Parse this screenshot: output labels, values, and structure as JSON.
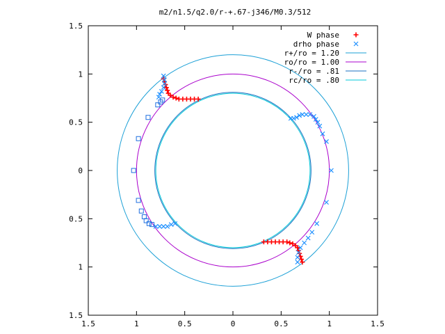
{
  "chart_data": {
    "type": "scatter",
    "title": "m2/n1.5/q2.0/r-+.67-j346/M0.3/512",
    "xlabel": "",
    "ylabel": "",
    "xlim": [
      -1.5,
      1.5
    ],
    "ylim": [
      -1.5,
      1.5
    ],
    "xticks": [
      -1.5,
      -1,
      -0.5,
      0,
      0.5,
      1,
      1.5
    ],
    "yticks": [
      -1.5,
      -1,
      -0.5,
      0,
      0.5,
      1,
      1.5
    ],
    "xtick_labels": [
      "1.5",
      "1",
      "0.5",
      "0",
      "0.5",
      "1",
      "1.5"
    ],
    "ytick_labels": [
      "1.5",
      "1",
      "0.5",
      "0",
      "0.5",
      "1",
      "1.5"
    ],
    "grid": false,
    "legend_position": "top-right",
    "colors": {
      "w_phase": "#ff0000",
      "drho_phase": "#1e90ff",
      "r_plus": "#1a9fd6",
      "ro": "#aa00cc",
      "r_minus": "#1a6fc0",
      "rc": "#00c8d8",
      "open_squares": "#1e6fe0"
    },
    "series": [
      {
        "name": "W phase",
        "marker": "plus",
        "color": "#ff0000",
        "points": [
          [
            -0.72,
            0.95
          ],
          [
            -0.71,
            0.92
          ],
          [
            -0.7,
            0.89
          ],
          [
            -0.69,
            0.86
          ],
          [
            -0.68,
            0.83
          ],
          [
            -0.67,
            0.8
          ],
          [
            -0.65,
            0.78
          ],
          [
            -0.62,
            0.76
          ],
          [
            -0.59,
            0.75
          ],
          [
            -0.56,
            0.74
          ],
          [
            -0.52,
            0.74
          ],
          [
            -0.48,
            0.74
          ],
          [
            -0.44,
            0.74
          ],
          [
            -0.4,
            0.74
          ],
          [
            -0.36,
            0.74
          ],
          [
            0.72,
            -0.95
          ],
          [
            0.71,
            -0.92
          ],
          [
            0.7,
            -0.89
          ],
          [
            0.69,
            -0.86
          ],
          [
            0.68,
            -0.83
          ],
          [
            0.67,
            -0.8
          ],
          [
            0.65,
            -0.78
          ],
          [
            0.62,
            -0.76
          ],
          [
            0.59,
            -0.75
          ],
          [
            0.56,
            -0.74
          ],
          [
            0.52,
            -0.74
          ],
          [
            0.48,
            -0.74
          ],
          [
            0.44,
            -0.74
          ],
          [
            0.4,
            -0.74
          ],
          [
            0.36,
            -0.74
          ],
          [
            0.32,
            -0.74
          ]
        ]
      },
      {
        "name": "drho phase",
        "marker": "cross",
        "color": "#1e90ff",
        "points": [
          [
            -0.72,
            0.98
          ],
          [
            -0.71,
            0.94
          ],
          [
            -0.71,
            0.9
          ],
          [
            -0.72,
            0.86
          ],
          [
            -0.74,
            0.82
          ],
          [
            -0.76,
            0.79
          ],
          [
            -0.77,
            0.76
          ],
          [
            0.6,
            0.54
          ],
          [
            0.63,
            0.54
          ],
          [
            0.66,
            0.55
          ],
          [
            0.69,
            0.57
          ],
          [
            0.72,
            0.58
          ],
          [
            0.76,
            0.58
          ],
          [
            0.8,
            0.58
          ],
          [
            0.84,
            0.56
          ],
          [
            0.86,
            0.53
          ],
          [
            0.88,
            0.5
          ],
          [
            0.9,
            0.46
          ],
          [
            0.93,
            0.38
          ],
          [
            0.97,
            0.3
          ],
          [
            1.02,
            0.0
          ],
          [
            0.97,
            -0.33
          ],
          [
            0.87,
            -0.55
          ],
          [
            0.82,
            -0.64
          ],
          [
            0.78,
            -0.7
          ],
          [
            0.74,
            -0.75
          ],
          [
            0.7,
            -0.8
          ],
          [
            0.68,
            -0.85
          ],
          [
            0.67,
            -0.9
          ],
          [
            0.67,
            -0.95
          ],
          [
            -0.6,
            -0.55
          ],
          [
            -0.64,
            -0.56
          ],
          [
            -0.68,
            -0.58
          ],
          [
            -0.72,
            -0.58
          ],
          [
            -0.76,
            -0.58
          ],
          [
            -0.8,
            -0.58
          ]
        ]
      },
      {
        "name": "",
        "marker": "square",
        "color": "#1e6fe0",
        "points": [
          [
            -0.73,
            0.73
          ],
          [
            -0.75,
            0.71
          ],
          [
            -0.78,
            0.68
          ],
          [
            -0.88,
            0.55
          ],
          [
            -0.98,
            0.33
          ],
          [
            -1.03,
            0.0
          ],
          [
            -0.98,
            -0.31
          ],
          [
            -0.95,
            -0.42
          ],
          [
            -0.92,
            -0.48
          ],
          [
            -0.9,
            -0.52
          ],
          [
            -0.87,
            -0.55
          ],
          [
            -0.84,
            -0.56
          ]
        ]
      }
    ],
    "circles": [
      {
        "name": "r+/ro = 1.20",
        "radius": 1.2,
        "color": "#1a9fd6"
      },
      {
        "name": "ro/ro = 1.00",
        "radius": 1.0,
        "color": "#aa00cc"
      },
      {
        "name": "r-/ro = .81",
        "radius": 0.81,
        "color": "#1a6fc0"
      },
      {
        "name": "rc/ro = .80",
        "radius": 0.8,
        "color": "#00c8d8"
      }
    ],
    "legend": [
      {
        "label": "W phase",
        "kind": "marker",
        "marker": "plus",
        "color": "#ff0000"
      },
      {
        "label": "drho phase",
        "kind": "marker",
        "marker": "cross",
        "color": "#1e90ff"
      },
      {
        "label": "r+/ro = 1.20",
        "kind": "line",
        "color": "#1a9fd6"
      },
      {
        "label": "ro/ro = 1.00",
        "kind": "line",
        "color": "#aa00cc"
      },
      {
        "label": "r-/ro = .81",
        "kind": "line",
        "color": "#1a6fc0"
      },
      {
        "label": "rc/ro = .80",
        "kind": "line",
        "color": "#00c8d8"
      }
    ]
  }
}
